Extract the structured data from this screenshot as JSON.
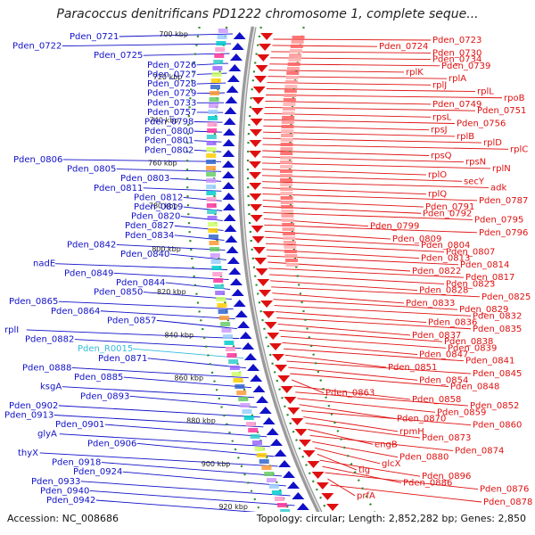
{
  "title": "Paracoccus denitrificans PD1222 chromosome 1, complete seque...",
  "footer": {
    "accession": "Accession: NC_008686",
    "summary": "Topology: circular; Length: 2,852,282 bp; Genes: 2,850"
  },
  "ruler": [
    "700 kbp",
    "720 kbp",
    "740 kbp",
    "760 kbp",
    "780 kbp",
    "800 kbp",
    "820 kbp",
    "840 kbp",
    "860 kbp",
    "880 kbp",
    "900 kbp",
    "920 kbp"
  ],
  "left_genes": [
    {
      "name": "Pden_0721"
    },
    {
      "name": "Pden_0722"
    },
    {
      "name": "Pden_0725"
    },
    {
      "name": "Pden_0726"
    },
    {
      "name": "Pden_0727"
    },
    {
      "name": "Pden_0728"
    },
    {
      "name": "Pden_0729"
    },
    {
      "name": "Pden_0733"
    },
    {
      "name": "Pden_0757"
    },
    {
      "name": "Pden_0798"
    },
    {
      "name": "Pden_0800"
    },
    {
      "name": "Pden_0801"
    },
    {
      "name": "Pden_0802"
    },
    {
      "name": "Pden_0806"
    },
    {
      "name": "Pden_0805"
    },
    {
      "name": "Pden_0803"
    },
    {
      "name": "Pden_0811"
    },
    {
      "name": "Pden_0812"
    },
    {
      "name": "Pden_0819"
    },
    {
      "name": "Pden_0820"
    },
    {
      "name": "Pden_0827"
    },
    {
      "name": "Pden_0834"
    },
    {
      "name": "Pden_0842"
    },
    {
      "name": "Pden_0840"
    },
    {
      "name": "nadE"
    },
    {
      "name": "Pden_0849"
    },
    {
      "name": "Pden_0844"
    },
    {
      "name": "Pden_0850"
    },
    {
      "name": "Pden_0865"
    },
    {
      "name": "Pden_0864"
    },
    {
      "name": "Pden_0857"
    },
    {
      "name": "rplI"
    },
    {
      "name": "Pden_0882"
    },
    {
      "name": "Pden_R0015"
    },
    {
      "name": "Pden_0871"
    },
    {
      "name": "Pden_0888"
    },
    {
      "name": "Pden_0885"
    },
    {
      "name": "ksgA"
    },
    {
      "name": "Pden_0893"
    },
    {
      "name": "Pden_0902"
    },
    {
      "name": "Pden_0913"
    },
    {
      "name": "Pden_0901"
    },
    {
      "name": "glyA"
    },
    {
      "name": "Pden_0906"
    },
    {
      "name": "thyX"
    },
    {
      "name": "Pden_0918"
    },
    {
      "name": "Pden_0924"
    },
    {
      "name": "Pden_0933"
    },
    {
      "name": "Pden_0940"
    },
    {
      "name": "Pden_0942"
    }
  ],
  "right_genes": [
    {
      "name": "Pden_0723"
    },
    {
      "name": "Pden_0724"
    },
    {
      "name": "Pden_0730"
    },
    {
      "name": "Pden_0734"
    },
    {
      "name": "Pden_0739"
    },
    {
      "name": "rplK"
    },
    {
      "name": "rplA"
    },
    {
      "name": "rplJ"
    },
    {
      "name": "rplL"
    },
    {
      "name": "rpoB"
    },
    {
      "name": "Pden_0749"
    },
    {
      "name": "Pden_0751"
    },
    {
      "name": "rpsL"
    },
    {
      "name": "Pden_0756"
    },
    {
      "name": "rpsJ"
    },
    {
      "name": "rplB"
    },
    {
      "name": "rplD"
    },
    {
      "name": "rplC"
    },
    {
      "name": "rpsQ"
    },
    {
      "name": "rpsN"
    },
    {
      "name": "rplN"
    },
    {
      "name": "rplO"
    },
    {
      "name": "secY"
    },
    {
      "name": "adk"
    },
    {
      "name": "rplQ"
    },
    {
      "name": "Pden_0787"
    },
    {
      "name": "Pden_0791"
    },
    {
      "name": "Pden_0792"
    },
    {
      "name": "Pden_0795"
    },
    {
      "name": "Pden_0799"
    },
    {
      "name": "Pden_0796"
    },
    {
      "name": "Pden_0809"
    },
    {
      "name": "Pden_0804"
    },
    {
      "name": "Pden_0807"
    },
    {
      "name": "Pden_0813"
    },
    {
      "name": "Pden_0814"
    },
    {
      "name": "Pden_0822"
    },
    {
      "name": "Pden_0817"
    },
    {
      "name": "Pden_0823"
    },
    {
      "name": "Pden_0828"
    },
    {
      "name": "Pden_0825"
    },
    {
      "name": "Pden_0833"
    },
    {
      "name": "Pden_0829"
    },
    {
      "name": "Pden_0832"
    },
    {
      "name": "Pden_0836"
    },
    {
      "name": "Pden_0835"
    },
    {
      "name": "Pden_0837"
    },
    {
      "name": "Pden_0838"
    },
    {
      "name": "Pden_0839"
    },
    {
      "name": "Pden_0847"
    },
    {
      "name": "Pden_0841"
    },
    {
      "name": "Pden_0851"
    },
    {
      "name": "Pden_0845"
    },
    {
      "name": "Pden_0854"
    },
    {
      "name": "Pden_0848"
    },
    {
      "name": "Pden_0863"
    },
    {
      "name": "Pden_0858"
    },
    {
      "name": "Pden_0852"
    },
    {
      "name": "Pden_0859"
    },
    {
      "name": "Pden_0870"
    },
    {
      "name": "Pden_0860"
    },
    {
      "name": "rpmH"
    },
    {
      "name": "Pden_0873"
    },
    {
      "name": "engB"
    },
    {
      "name": "Pden_0874"
    },
    {
      "name": "Pden_0880"
    },
    {
      "name": "glcX"
    },
    {
      "name": "tig"
    },
    {
      "name": "Pden_0896"
    },
    {
      "name": "Pden_0886"
    },
    {
      "name": "Pden_0876"
    },
    {
      "name": "prfA"
    },
    {
      "name": "Pden_0878"
    }
  ],
  "colors": {
    "left": "#1010c8",
    "right": "#e01010",
    "rna": "#33bbdd",
    "backbone": "#888888"
  }
}
